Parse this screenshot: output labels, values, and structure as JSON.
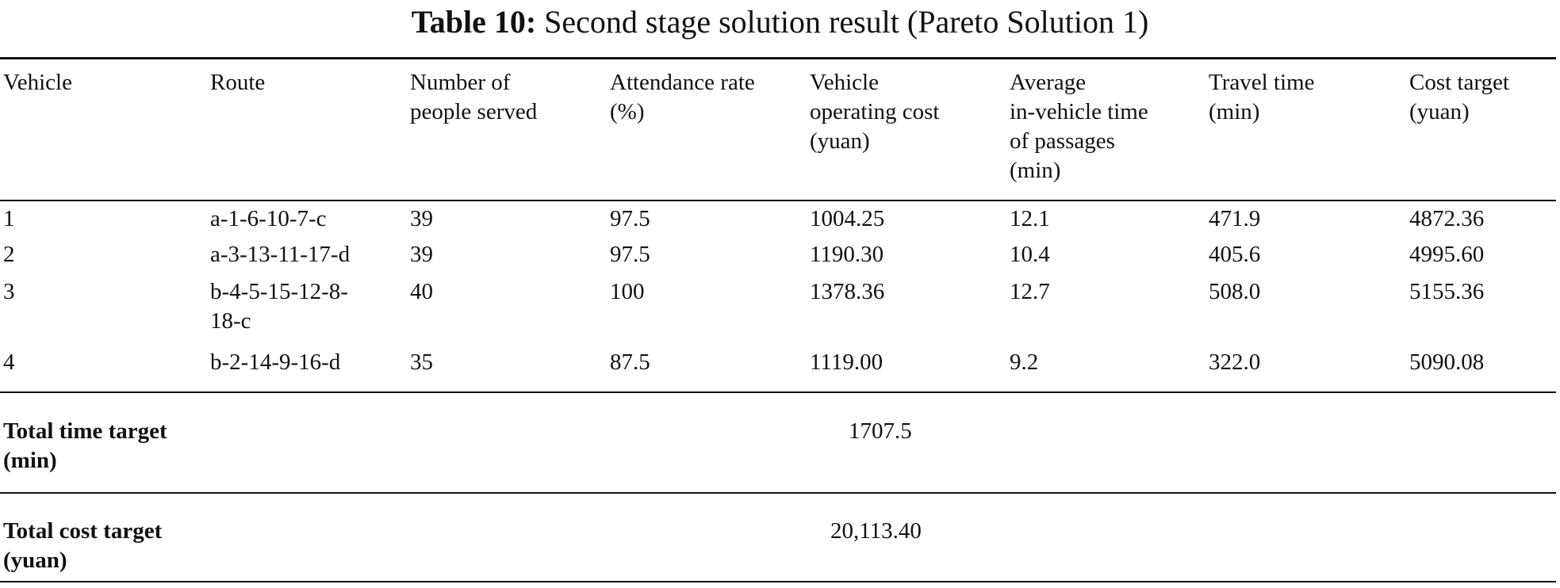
{
  "table": {
    "caption_label": "Table 10:",
    "caption_text": "Second stage solution result (Pareto Solution 1)",
    "headers": [
      "Vehicle",
      "Route",
      "Number of\npeople served",
      "Attendance rate\n(%)",
      "Vehicle\noperating cost\n(yuan)",
      "Average\nin-vehicle time\nof passages\n(min)",
      "Travel time\n(min)",
      "Cost target\n(yuan)"
    ],
    "rows": [
      [
        "1",
        "a-1-6-10-7-c",
        "39",
        "97.5",
        "1004.25",
        "12.1",
        "471.9",
        "4872.36"
      ],
      [
        "2",
        "a-3-13-11-17-d",
        "39",
        "97.5",
        "1190.30",
        "10.4",
        "405.6",
        "4995.60"
      ],
      [
        "3",
        "b-4-5-15-12-8-\n18-c",
        "40",
        "100",
        "1378.36",
        "12.7",
        "508.0",
        "5155.36"
      ],
      [
        "4",
        "b-2-14-9-16-d",
        "35",
        "87.5",
        "1119.00",
        "9.2",
        "322.0",
        "5090.08"
      ]
    ],
    "totals": [
      {
        "label": "Total time target\n(min)",
        "value": "1707.5"
      },
      {
        "label": "Total cost target\n(yuan)",
        "value": "20,113.40"
      }
    ]
  }
}
